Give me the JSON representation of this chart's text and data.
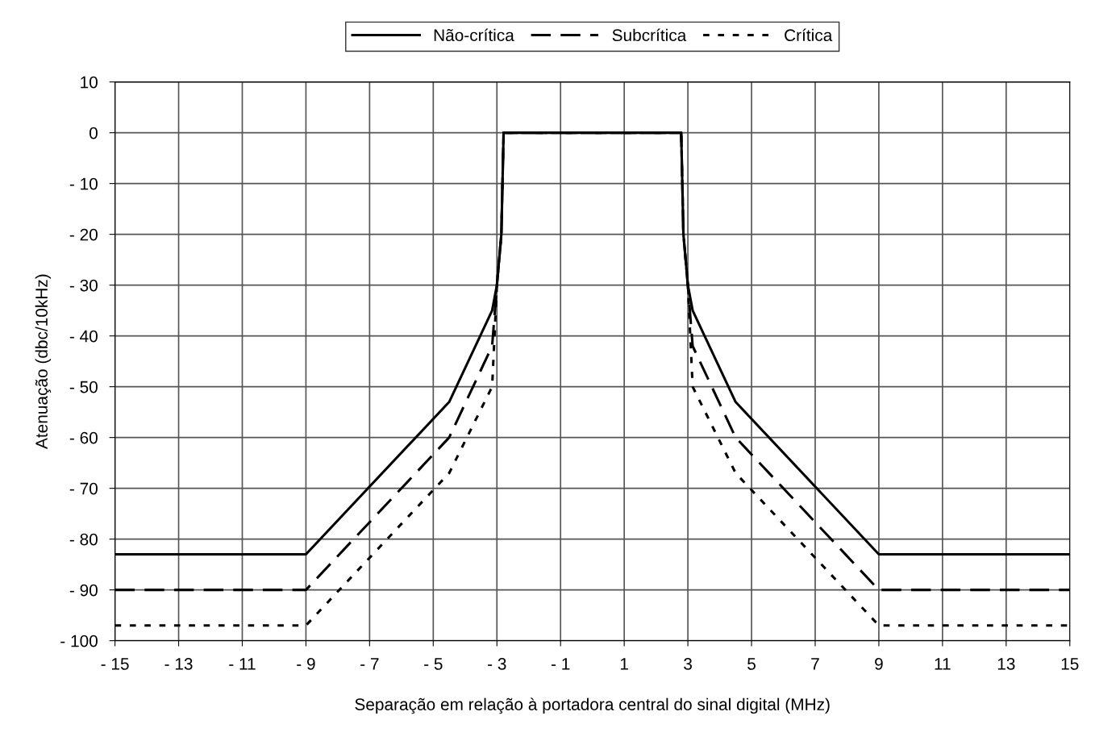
{
  "chart_data": {
    "type": "line",
    "xlabel": "Separação em relação à portadora central do sinal digital (MHz)",
    "ylabel": "Atenuação (dbc/10kHz)",
    "x": [
      -15,
      -9,
      -4.5,
      -3.15,
      -3,
      -2.86,
      -2.79,
      2.79,
      2.86,
      3,
      3.15,
      4.5,
      9,
      15
    ],
    "series": [
      {
        "name": "Não-crítica",
        "color": "#000000",
        "line_style": "solid",
        "values": [
          -83,
          -83,
          -53,
          -35,
          -30,
          -20,
          0,
          0,
          -20,
          -30,
          -35,
          -53,
          -83,
          -83
        ]
      },
      {
        "name": "Subcrítica",
        "color": "#000000",
        "line_style": "dashed",
        "values": [
          -90,
          -90,
          -60,
          -42,
          -30,
          -20,
          0,
          0,
          -20,
          -30,
          -42,
          -60,
          -90,
          -90
        ]
      },
      {
        "name": "Crítica",
        "color": "#000000",
        "line_style": "dotted",
        "values": [
          -97,
          -97,
          -67,
          -50,
          -30,
          -20,
          0,
          0,
          -20,
          -30,
          -50,
          -67,
          -97,
          -97
        ]
      }
    ],
    "xlim": [
      -15,
      15
    ],
    "ylim": [
      -100,
      10
    ],
    "xticks": [
      {
        "value": -15,
        "label": "- 15"
      },
      {
        "value": -13,
        "label": "- 13"
      },
      {
        "value": -11,
        "label": "- 11"
      },
      {
        "value": -9,
        "label": "- 9"
      },
      {
        "value": -7,
        "label": "- 7"
      },
      {
        "value": -5,
        "label": "- 5"
      },
      {
        "value": -3,
        "label": "- 3"
      },
      {
        "value": -1,
        "label": "- 1"
      },
      1,
      3,
      5,
      7,
      9,
      11,
      13,
      15
    ],
    "yticks": [
      10,
      0,
      {
        "value": -10,
        "label": "- 10"
      },
      {
        "value": -20,
        "label": "- 20"
      },
      {
        "value": -30,
        "label": "- 30"
      },
      {
        "value": -40,
        "label": "- 40"
      },
      {
        "value": -50,
        "label": "- 50"
      },
      {
        "value": -60,
        "label": "- 60"
      },
      {
        "value": -70,
        "label": "- 70"
      },
      {
        "value": -80,
        "label": "- 80"
      },
      {
        "value": -90,
        "label": "- 90"
      },
      {
        "value": -100,
        "label": "- 100"
      }
    ],
    "grid": true,
    "legend": "top",
    "marker": "none"
  }
}
